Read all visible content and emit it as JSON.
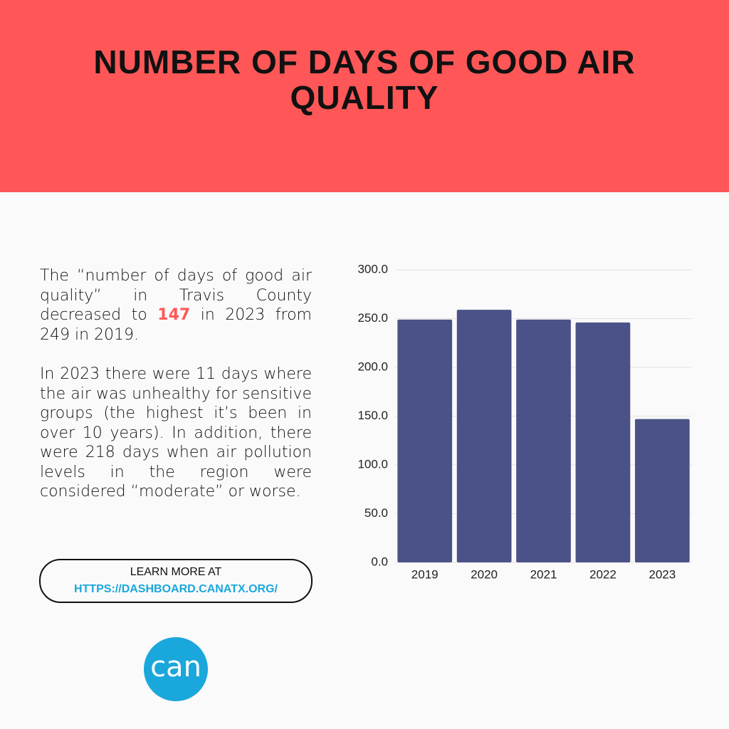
{
  "chart_data": {
    "type": "bar",
    "title": "NUMBER OF DAYS OF GOOD AIR QUALITY",
    "categories": [
      "2019",
      "2020",
      "2021",
      "2022",
      "2023"
    ],
    "values": [
      249,
      259,
      249,
      246,
      147
    ],
    "color": "#4b5287",
    "ylim": [
      0,
      300
    ],
    "yticks": [
      {
        "value": 0,
        "label": "0.0"
      },
      {
        "value": 50,
        "label": "50.0"
      },
      {
        "value": 100,
        "label": "100.0"
      },
      {
        "value": 150,
        "label": "150.0"
      },
      {
        "value": 200,
        "label": "200.0"
      },
      {
        "value": 250,
        "label": "250.0"
      },
      {
        "value": 300,
        "label": "300.0"
      }
    ],
    "grid": true
  },
  "text": {
    "paragraph1": [
      "The “number of days of good air quality” in Travis County decreased to ",
      "147",
      " in 2023 from 249 in 2019."
    ],
    "paragraph2": "In 2023 there were 11 days where the air was unhealthy for sensitive groups (the highest it’s been in over 10 years). In addition, there were 218 days when air pollution levels in the region were considered “moderate” or worse."
  },
  "button": {
    "label": "LEARN MORE AT",
    "link": "HTTPS://DASHBOARD.CANATX.ORG/"
  },
  "logo": "can"
}
